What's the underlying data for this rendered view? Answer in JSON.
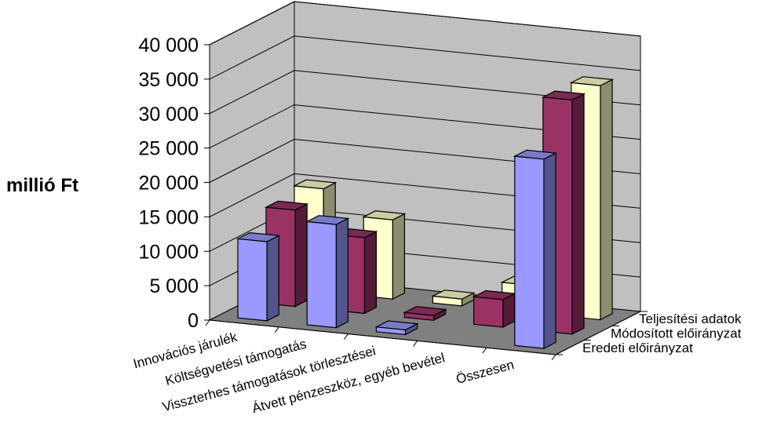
{
  "chart_data": {
    "type": "bar",
    "subtype": "3d-clustered-column",
    "title": "",
    "xlabel": "",
    "ylabel": "millió Ft",
    "ylim": [
      0,
      40000
    ],
    "yticks": [
      0,
      5000,
      10000,
      15000,
      20000,
      25000,
      30000,
      35000,
      40000
    ],
    "ytick_labels": [
      "0",
      "5 000",
      "10 000",
      "15 000",
      "20 000",
      "25 000",
      "30 000",
      "35 000",
      "40 000"
    ],
    "categories": [
      "Innovációs járulék",
      "Költségvetési támogatás",
      "Visszterhes támogatások törlesztései",
      "Átvett pénzeszköz, egyéb bevétel",
      "Összesen"
    ],
    "series": [
      {
        "name": "Eredeti előirányzat",
        "values": [
          11500,
          15000,
          700,
          0,
          27500
        ]
      },
      {
        "name": "Módosított előirányzat",
        "values": [
          14000,
          11000,
          700,
          4000,
          34000
        ]
      },
      {
        "name": "Teljesítési adatok",
        "values": [
          15000,
          11500,
          1000,
          4000,
          34000
        ]
      }
    ],
    "colors": [
      "#9999ff",
      "#993366",
      "#ffffcc"
    ],
    "grid": true,
    "legend_placement": "right",
    "wall_color": "#c0c0c0",
    "floor_color": "#808080"
  }
}
